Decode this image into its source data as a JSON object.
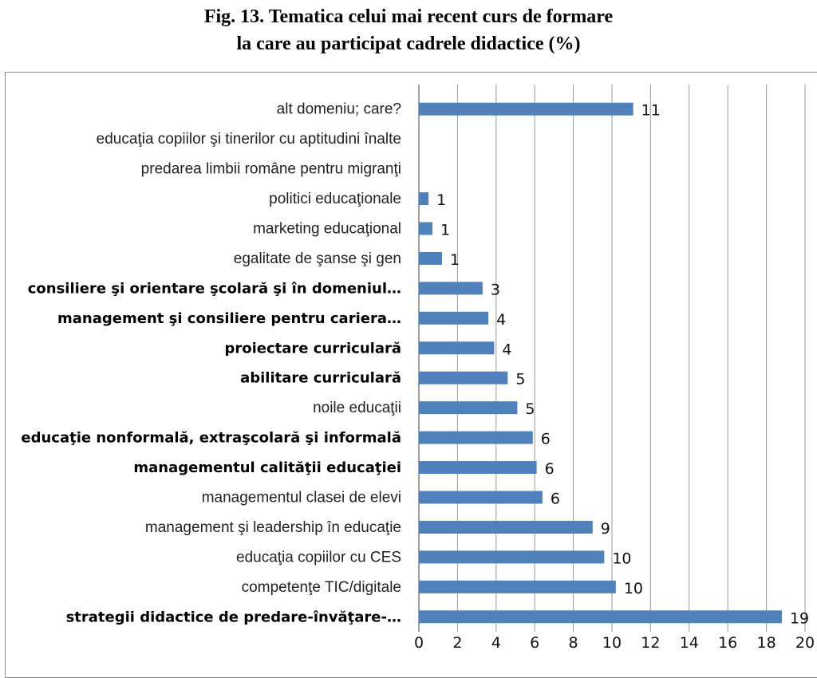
{
  "title_line1": "Fig. 13. Tematica celui mai recent curs de formare",
  "title_line2": "la care au participat cadrele didactice (%)",
  "chart_data": {
    "type": "bar",
    "orientation": "horizontal",
    "categories": [
      "alt domeniu; care?",
      "educaţia copiilor şi tinerilor cu aptitudini înalte",
      "predarea limbii române pentru migranţi",
      "politici educaţionale",
      "marketing educaţional",
      "egalitate de şanse şi gen",
      "consiliere şi orientare şcolară şi în domeniul…",
      "management şi consiliere pentru cariera…",
      "proiectare curriculară",
      "abilitare curriculară",
      "noile educaţii",
      "educaţie nonformală, extraşcolară şi informală",
      "managementul calităţii educaţiei",
      "managementul clasei de elevi",
      "management şi leadership în educaţie",
      "educaţia copiilor cu CES",
      "competenţe TIC/digitale",
      "strategii didactice de predare-învăţare-…"
    ],
    "bold_categories": [
      6,
      7,
      8,
      9,
      11,
      12,
      17
    ],
    "values": [
      11.1,
      null,
      null,
      0.5,
      0.7,
      1.2,
      3.3,
      3.6,
      3.9,
      4.6,
      5.1,
      5.9,
      6.1,
      6.4,
      9.0,
      9.6,
      10.2,
      18.8
    ],
    "value_labels": [
      "11",
      "",
      "",
      "1",
      "1",
      "1",
      "3",
      "4",
      "4",
      "5",
      "5",
      "6",
      "6",
      "6",
      "9",
      "10",
      "10",
      "19"
    ],
    "xlim": [
      0,
      20
    ],
    "xticks": [
      0,
      2,
      4,
      6,
      8,
      10,
      12,
      14,
      16,
      18,
      20
    ],
    "grid": true,
    "bar_color": "#4f81bd"
  }
}
